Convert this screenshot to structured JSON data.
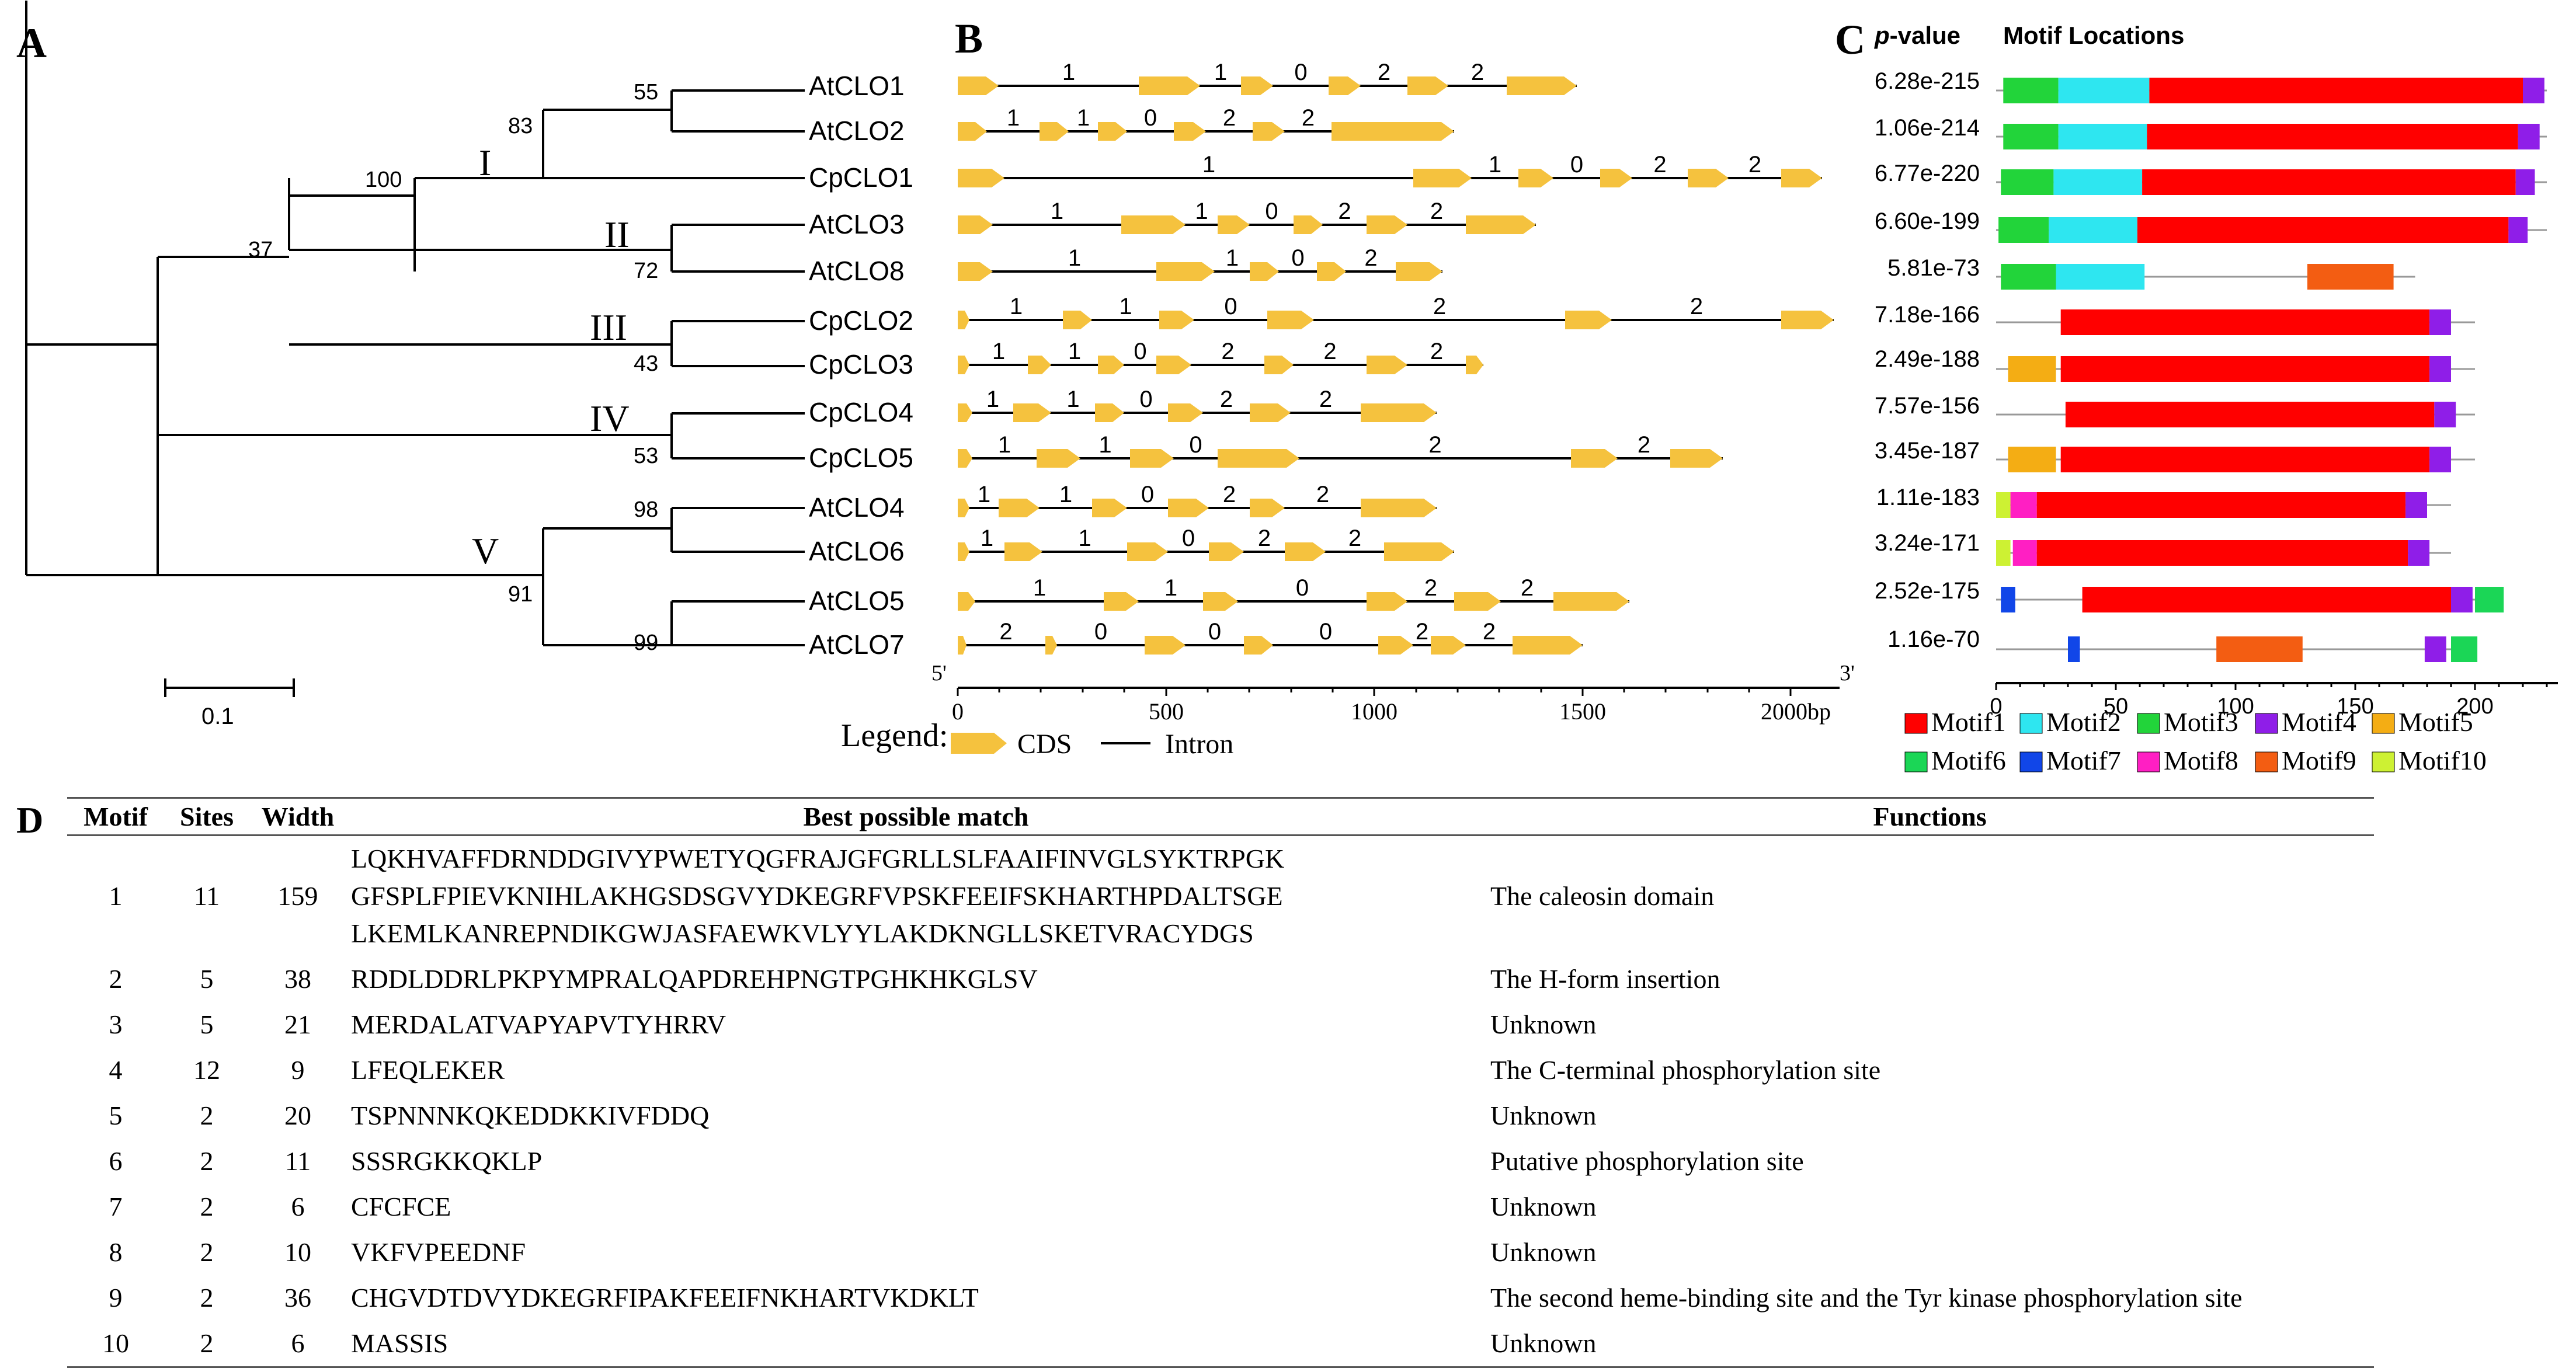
{
  "panel_labels": {
    "a": "A",
    "b": "B",
    "c": "C",
    "d": "D"
  },
  "tree": {
    "taxa": [
      "AtCLO1",
      "AtCLO2",
      "CpCLO1",
      "AtCLO3",
      "AtCLO8",
      "CpCLO2",
      "CpCLO3",
      "CpCLO4",
      "CpCLO5",
      "AtCLO4",
      "AtCLO6",
      "AtCLO5",
      "AtCLO7"
    ],
    "clades": [
      "I",
      "II",
      "III",
      "IV",
      "V"
    ],
    "bootstrap": [
      "55",
      "83",
      "100",
      "72",
      "37",
      "43",
      "53",
      "98",
      "91",
      "99"
    ],
    "scale_label": "0.1"
  },
  "gene_structure": {
    "phases": [
      [
        "1",
        "1",
        "0",
        "2",
        "2"
      ],
      [
        "1",
        "1",
        "0",
        "2",
        "2"
      ],
      [
        "1",
        "1",
        "0",
        "2",
        "2"
      ],
      [
        "1",
        "1",
        "0",
        "2",
        "2"
      ],
      [
        "1",
        "1",
        "0",
        "2"
      ],
      [
        "1",
        "1",
        "0",
        "2",
        "2"
      ],
      [
        "1",
        "1",
        "0",
        "2",
        "2",
        "2"
      ],
      [
        "1",
        "1",
        "0",
        "2",
        "2"
      ],
      [
        "1",
        "1",
        "0",
        "2",
        "2"
      ],
      [
        "1",
        "1",
        "0",
        "2",
        "2"
      ],
      [
        "1",
        "1",
        "0",
        "2",
        "2"
      ],
      [
        "1",
        "1",
        "0",
        "2",
        "2"
      ],
      [
        "2",
        "0",
        "0",
        "0",
        "2",
        "2"
      ]
    ],
    "axis_ticks": [
      "0",
      "500",
      "1000",
      "1500",
      "2000bp"
    ],
    "five_prime": "5'",
    "three_prime": "3'",
    "legend_title": "Legend:",
    "legend_cds": "CDS",
    "legend_intron": "Intron",
    "cds_color": "#f5c23e"
  },
  "motif_locations": {
    "pvalue_label": "p",
    "pvalue_label_rest": "-value",
    "title": "Motif Locations",
    "pvalues": [
      "6.28e-215",
      "1.06e-214",
      "6.77e-220",
      "6.60e-199",
      "5.81e-73",
      "7.18e-166",
      "2.49e-188",
      "7.57e-156",
      "3.45e-187",
      "1.11e-183",
      "3.24e-171",
      "2.52e-175",
      "1.16e-70"
    ],
    "axis_ticks": [
      "0",
      "50",
      "100",
      "150",
      "200"
    ],
    "legend": [
      "Motif1",
      "Motif2",
      "Motif3",
      "Motif4",
      "Motif5",
      "Motif6",
      "Motif7",
      "Motif8",
      "Motif9",
      "Motif10"
    ],
    "colors": {
      "Motif1": "#ff0000",
      "Motif2": "#2ee6f0",
      "Motif3": "#22d43a",
      "Motif4": "#8f1ee8",
      "Motif5": "#f4ad14",
      "Motif6": "#1bd656",
      "Motif7": "#1146e8",
      "Motif8": "#ff1fc3",
      "Motif9": "#f35d12",
      "Motif10": "#cdf133"
    }
  },
  "table": {
    "headers": [
      "Motif",
      "Sites",
      "Width",
      "Best possible match",
      "Functions"
    ],
    "rows": [
      {
        "motif": "1",
        "sites": "11",
        "width": "159",
        "match": "LQKHVAFFDRNDDGIVYPWETYQGFRAJGFGRLLSLFAAIFINVGLSYKTRPGK\nGFSPLFPIEVKNIHLAKHGSDSGVYDKEGRFVPSKFEEIFSKHARTHPDALTSGE\nLKEMLKANREPNDIKGWJASFAEWKVLYYLAKDKNGLLSKETVRACYDGS",
        "function": "The caleosin domain"
      },
      {
        "motif": "2",
        "sites": "5",
        "width": "38",
        "match": "RDDLDDRLPKPYMPRALQAPDREHPNGTPGHKHKGLSV",
        "function": "The H-form insertion"
      },
      {
        "motif": "3",
        "sites": "5",
        "width": "21",
        "match": "MERDALATVAPYAPVTYHRRV",
        "function": "Unknown"
      },
      {
        "motif": "4",
        "sites": "12",
        "width": "9",
        "match": "LFEQLEKER",
        "function": "The C-terminal phosphorylation site"
      },
      {
        "motif": "5",
        "sites": "2",
        "width": "20",
        "match": "TSPNNNKQKEDDKKIVFDDQ",
        "function": "Unknown"
      },
      {
        "motif": "6",
        "sites": "2",
        "width": "11",
        "match": "SSSRGKKQKLP",
        "function": "Putative phosphorylation site"
      },
      {
        "motif": "7",
        "sites": "2",
        "width": "6",
        "match": "CFCFCE",
        "function": "Unknown"
      },
      {
        "motif": "8",
        "sites": "2",
        "width": "10",
        "match": "VKFVPEEDNF",
        "function": "Unknown"
      },
      {
        "motif": "9",
        "sites": "2",
        "width": "36",
        "match": "CHGVDTDVYDKEGRFIPAKFEEIFNKHARTVKDKLT",
        "function": "The second heme-binding site and the Tyr kinase phosphorylation site"
      },
      {
        "motif": "10",
        "sites": "2",
        "width": "6",
        "match": "MASSIS",
        "function": "Unknown"
      }
    ]
  }
}
